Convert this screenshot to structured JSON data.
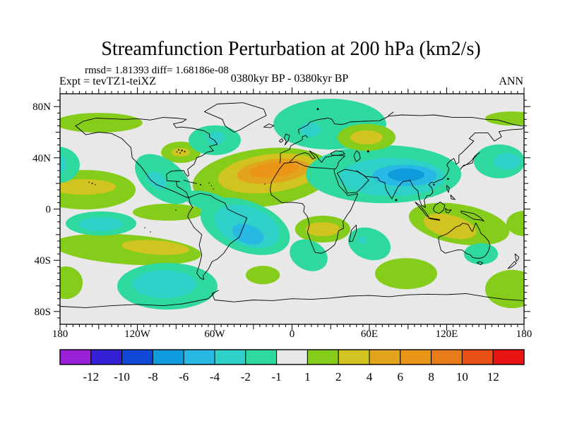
{
  "title": "Streamfunction Perturbation at 200 hPa (km2/s)",
  "stats_line": "rmsd= 1.81393 diff= 1.68186e-08",
  "experiment_label": "Expt = tevTZ1-teiXZ",
  "period_label": "0380kyr BP - 0380kyr BP",
  "season_label": "ANN",
  "axes": {
    "x_tick_labels": [
      "180",
      "120W",
      "60W",
      "0",
      "60E",
      "120E",
      "180"
    ],
    "y_tick_labels": [
      "80N",
      "40N",
      "0",
      "40S",
      "80S"
    ]
  },
  "colorbar": {
    "labels": [
      "-12",
      "-10",
      "-8",
      "-6",
      "-4",
      "-2",
      "-1",
      "1",
      "2",
      "4",
      "6",
      "8",
      "10",
      "12"
    ]
  },
  "chart_data": {
    "type": "heatmap",
    "title": "Streamfunction Perturbation at 200 hPa (km2/s)",
    "variable": "Streamfunction Perturbation",
    "pressure_level": "200 hPa",
    "units": "km2/s",
    "rmsd": 1.81393,
    "diff": 1.68186e-08,
    "experiment": "tevTZ1-teiXZ",
    "period": "0380kyr BP - 0380kyr BP",
    "season": "ANN",
    "xlim": [
      -180,
      180
    ],
    "ylim": [
      -90,
      90
    ],
    "grid": false,
    "legend_position": "bottom",
    "contour_levels": [
      -12,
      -10,
      -8,
      -6,
      -4,
      -2,
      -1,
      1,
      2,
      4,
      6,
      8,
      10,
      12
    ],
    "palette": [
      "#9a20d8",
      "#3420d4",
      "#1048d8",
      "#109cdc",
      "#28b8e4",
      "#2ed0c8",
      "#2ed89e",
      "#e8e8e8",
      "#86cc1a",
      "#d2c420",
      "#e2a41c",
      "#ea9418",
      "#e87c18",
      "#e85018",
      "#e81414"
    ],
    "background_band": "-1 to 1",
    "anomaly_regions": [
      {
        "lon": -150.0,
        "lat": 67.4,
        "rlon": 34.0,
        "rlat": 7.7,
        "rot": 0,
        "color_index": 8,
        "band": "1..2"
      },
      {
        "lon": 170.7,
        "lat": 70.7,
        "rlon": 20.8,
        "rlat": 5.5,
        "rot": 0,
        "color_index": 8,
        "band": "1..2"
      },
      {
        "lon": -160.8,
        "lat": 15.1,
        "rlon": 39.5,
        "rlat": 15.4,
        "rot": 0,
        "color_index": 8,
        "band": "1..2"
      },
      {
        "lon": -161.9,
        "lat": 17.3,
        "rlon": 25.2,
        "rlat": 6.1,
        "rot": 0,
        "color_index": 9,
        "band": "2..4"
      },
      {
        "lon": -96.2,
        "lat": -2.5,
        "rlon": 27.4,
        "rlat": 6.6,
        "rot": 0,
        "color_index": 8,
        "band": "1..2"
      },
      {
        "lon": -86.3,
        "lat": 44.3,
        "rlon": 15.3,
        "rlat": 8.3,
        "rot": 0,
        "color_index": 8,
        "band": "1..2"
      },
      {
        "lon": -86.3,
        "lat": 44.3,
        "rlon": 7.1,
        "rlat": 3.3,
        "rot": 0,
        "color_index": 9,
        "band": "2..4"
      },
      {
        "lon": -22.7,
        "lat": 24.5,
        "rlon": 54.8,
        "rlat": 22.6,
        "rot": -7,
        "color_index": 8,
        "band": "1..2"
      },
      {
        "lon": -17.3,
        "lat": 27.8,
        "rlon": 40.5,
        "rlat": 14.9,
        "rot": -7,
        "color_index": 9,
        "band": "2..4"
      },
      {
        "lon": -14.5,
        "lat": 29.5,
        "rlon": 28.5,
        "rlat": 9.4,
        "rot": -7,
        "color_index": 10,
        "band": "4..6"
      },
      {
        "lon": -14.0,
        "lat": 30.6,
        "rlon": 19.7,
        "rlat": 5.5,
        "rot": -7,
        "color_index": 11,
        "band": "6..8"
      },
      {
        "lon": 129.6,
        "lat": -11.8,
        "rlon": 39.5,
        "rlat": 15.4,
        "rot": 10,
        "color_index": 8,
        "band": "1..2"
      },
      {
        "lon": 122.5,
        "lat": -13.5,
        "rlon": 20.8,
        "rlat": 8.8,
        "rot": 14,
        "color_index": 9,
        "band": "2..4"
      },
      {
        "lon": 180.5,
        "lat": -11.3,
        "rlon": 14.2,
        "rlat": 9.9,
        "rot": 0,
        "color_index": 8,
        "band": "1..2"
      },
      {
        "lon": -127.9,
        "lat": -31.6,
        "rlon": 57.5,
        "rlat": 11.6,
        "rot": 4,
        "color_index": 8,
        "band": "1..2"
      },
      {
        "lon": -106.0,
        "lat": -30.0,
        "rlon": 26.3,
        "rlat": 5.5,
        "rot": 4,
        "color_index": 9,
        "band": "2..4"
      },
      {
        "lon": 23.8,
        "lat": -15.7,
        "rlon": 21.4,
        "rlat": 10.5,
        "rot": 0,
        "color_index": 8,
        "band": "1..2"
      },
      {
        "lon": 23.8,
        "lat": -15.7,
        "rlon": 13.2,
        "rlat": 5.5,
        "rot": 0,
        "color_index": 9,
        "band": "2..4"
      },
      {
        "lon": 88.5,
        "lat": -50.4,
        "rlon": 24.1,
        "rlat": 12.1,
        "rot": 0,
        "color_index": 8,
        "band": "1..2"
      },
      {
        "lon": -175.6,
        "lat": -57.5,
        "rlon": 13.2,
        "rlat": 12.7,
        "rot": 0,
        "color_index": 8,
        "band": "1..2"
      },
      {
        "lon": 170.7,
        "lat": -62.5,
        "rlon": 20.8,
        "rlat": 14.9,
        "rot": 0,
        "color_index": 8,
        "band": "1..2"
      },
      {
        "lon": -22.7,
        "lat": -51.5,
        "rlon": 13.2,
        "rlat": 7.2,
        "rot": 0,
        "color_index": 8,
        "band": "1..2"
      },
      {
        "lon": -182.2,
        "lat": 34.4,
        "rlon": 17.5,
        "rlat": 14.3,
        "rot": 0,
        "color_index": 6,
        "band": "-2..-1"
      },
      {
        "lon": -183.3,
        "lat": 35.0,
        "rlon": 8.2,
        "rlat": 7.7,
        "rot": 0,
        "color_index": 5,
        "band": "-4..-2"
      },
      {
        "lon": -100.0,
        "lat": 23.4,
        "rlon": 25.2,
        "rlat": 14.9,
        "rot": 38,
        "color_index": 6,
        "band": "-2..-1"
      },
      {
        "lon": -64.9,
        "lat": 5.8,
        "rlon": 19.7,
        "rlat": 7.2,
        "rot": 15,
        "color_index": 6,
        "band": "-2..-1"
      },
      {
        "lon": -104.9,
        "lat": 22.3,
        "rlon": 8.8,
        "rlat": 5.5,
        "rot": 38,
        "color_index": 5,
        "band": "-4..-2"
      },
      {
        "lon": -60.0,
        "lat": 53.7,
        "rlon": 20.3,
        "rlat": 11.6,
        "rot": 0,
        "color_index": 6,
        "band": "-2..-1"
      },
      {
        "lon": -58.9,
        "lat": 55.3,
        "rlon": 6.6,
        "rlat": 5.0,
        "rot": 0,
        "color_index": 5,
        "band": "-4..-2"
      },
      {
        "lon": 29.3,
        "lat": 66.3,
        "rlon": 43.8,
        "rlat": 19.8,
        "rot": 0,
        "color_index": 6,
        "band": "-2..-1"
      },
      {
        "lon": 14.0,
        "lat": 61.9,
        "rlon": 8.2,
        "rlat": 5.5,
        "rot": 0,
        "color_index": 5,
        "band": "-4..-2"
      },
      {
        "lon": -148.2,
        "lat": -11.3,
        "rlon": 27.4,
        "rlat": 9.4,
        "rot": 0,
        "color_index": 6,
        "band": "-2..-1"
      },
      {
        "lon": -148.2,
        "lat": -11.8,
        "rlon": 17.0,
        "rlat": 5.5,
        "rot": 0,
        "color_index": 5,
        "band": "-4..-2"
      },
      {
        "lon": -36.4,
        "lat": -13.5,
        "rlon": 36.2,
        "rlat": 19.8,
        "rot": 20,
        "color_index": 6,
        "band": "-2..-1"
      },
      {
        "lon": -34.8,
        "lat": -13.5,
        "rlon": 26.3,
        "rlat": 15.4,
        "rot": 20,
        "color_index": 5,
        "band": "-4..-2"
      },
      {
        "lon": -34.2,
        "lat": -19.6,
        "rlon": 12.6,
        "rlat": 7.2,
        "rot": 20,
        "color_index": 4,
        "band": "-6..-4"
      },
      {
        "lon": 71.0,
        "lat": 27.2,
        "rlon": 60.3,
        "rlat": 22.6,
        "rot": 0,
        "color_index": 6,
        "band": "-2..-1"
      },
      {
        "lon": 77.5,
        "lat": 25.0,
        "rlon": 41.1,
        "rlat": 14.9,
        "rot": 0,
        "color_index": 5,
        "band": "-4..-2"
      },
      {
        "lon": 87.4,
        "lat": 26.1,
        "rlon": 25.2,
        "rlat": 8.3,
        "rot": 0,
        "color_index": 4,
        "band": "-6..-4"
      },
      {
        "lon": 88.5,
        "lat": 26.7,
        "rlon": 14.2,
        "rlat": 5.0,
        "rot": 0,
        "color_index": 3,
        "band": "-8..-6"
      },
      {
        "lon": 160.8,
        "lat": 37.2,
        "rlon": 19.7,
        "rlat": 13.2,
        "rot": 0,
        "color_index": 6,
        "band": "-2..-1"
      },
      {
        "lon": 166.8,
        "lat": 37.2,
        "rlon": 10.4,
        "rlat": 6.6,
        "rot": 0,
        "color_index": 5,
        "band": "-4..-2"
      },
      {
        "lon": 60.0,
        "lat": -27.2,
        "rlon": 17.0,
        "rlat": 12.1,
        "rot": 20,
        "color_index": 6,
        "band": "-2..-1"
      },
      {
        "lon": 54.5,
        "lat": -24.5,
        "rlon": 3.3,
        "rlat": 2.8,
        "rot": 0,
        "color_index": 5,
        "band": "-4..-2"
      },
      {
        "lon": 12.9,
        "lat": -36.1,
        "rlon": 15.3,
        "rlat": 11.6,
        "rot": 25,
        "color_index": 6,
        "band": "-2..-1"
      },
      {
        "lon": 146.6,
        "lat": -35.0,
        "rlon": 13.2,
        "rlat": 8.3,
        "rot": 0,
        "color_index": 6,
        "band": "-2..-1"
      },
      {
        "lon": -96.7,
        "lat": -60.3,
        "rlon": 38.9,
        "rlat": 18.2,
        "rot": 0,
        "color_index": 6,
        "band": "-2..-1"
      },
      {
        "lon": -98.9,
        "lat": -58.6,
        "rlon": 24.7,
        "rlat": 11.0,
        "rot": 0,
        "color_index": 5,
        "band": "-4..-2"
      },
      {
        "lon": 57.8,
        "lat": 55.9,
        "rlon": 22.5,
        "rlat": 10.5,
        "rot": 0,
        "color_index": 8,
        "band": "1..2"
      },
      {
        "lon": 57.8,
        "lat": 55.9,
        "rlon": 12.6,
        "rlat": 5.5,
        "rot": 0,
        "color_index": 9,
        "band": "2..4"
      }
    ]
  }
}
